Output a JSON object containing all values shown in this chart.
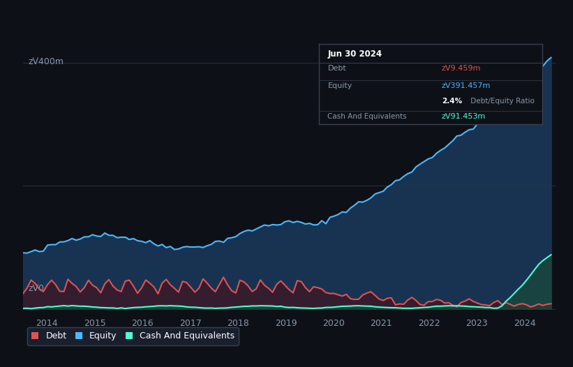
{
  "bg_color": "#0d1117",
  "plot_bg_color": "#0d1117",
  "tooltip_box": {
    "date": "Jun 30 2024",
    "debt_label": "Debt",
    "debt_value": "zᐯ9.459m",
    "equity_label": "Equity",
    "equity_value": "zᐯ391.457m",
    "ratio_text": "2.4% Debt/Equity Ratio",
    "cash_label": "Cash And Equivalents",
    "cash_value": "zᐯ91.453m"
  },
  "ylabel_top": "zᐯ400m",
  "ylabel_zero": "zᐯ0",
  "xticklabels": [
    "2014",
    "2015",
    "2016",
    "2017",
    "2018",
    "2019",
    "2020",
    "2021",
    "2022",
    "2023",
    "2024"
  ],
  "debt_color": "#e05252",
  "equity_color": "#4db8ff",
  "cash_color": "#4dffd2",
  "equity_fill_color": "#1a3a5c",
  "debt_fill_color": "#3a1a2a",
  "cash_fill_color": "#1a4a3a",
  "grid_color": "#2a3040",
  "legend_bg": "#1a1f2e",
  "legend_border": "#3a4050"
}
